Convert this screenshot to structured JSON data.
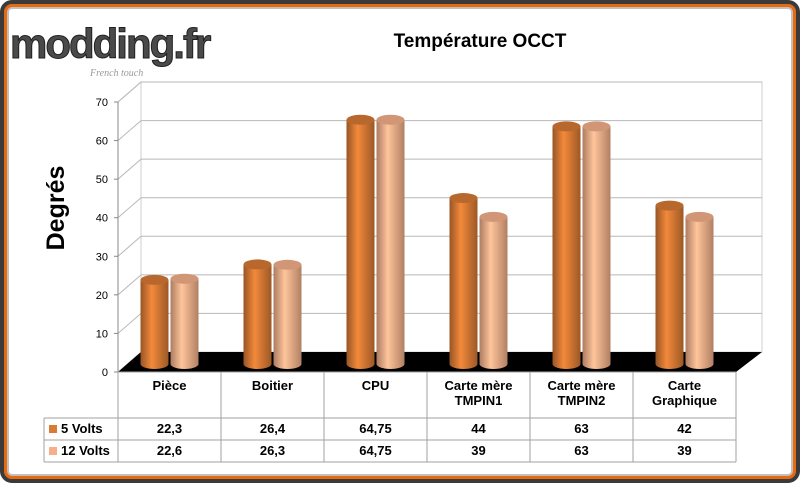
{
  "brand": {
    "logo_text": "modding.fr",
    "tagline": "French touch"
  },
  "chart_data": {
    "type": "bar",
    "title": "Température OCCT",
    "ylabel": "Degrés",
    "xlabel": "",
    "ylim": [
      0,
      70
    ],
    "yticks": [
      "0",
      "10",
      "20",
      "30",
      "40",
      "50",
      "60",
      "70"
    ],
    "categories": [
      [
        "Pièce"
      ],
      [
        "Boitier"
      ],
      [
        "CPU"
      ],
      [
        "Carte mère",
        "TMPIN1"
      ],
      [
        "Carte mère",
        "TMPIN2"
      ],
      [
        "Carte",
        "Graphique"
      ]
    ],
    "series": [
      {
        "name": "5 Volts",
        "color": "#d97a35",
        "values": [
          22.3,
          26.4,
          64.75,
          44,
          63,
          42
        ],
        "labels": [
          "22,3",
          "26,4",
          "64,75",
          "44",
          "63",
          "42"
        ]
      },
      {
        "name": "12 Volts",
        "color": "#f5b08a",
        "values": [
          22.6,
          26.3,
          64.75,
          39,
          63,
          39
        ],
        "labels": [
          "22,6",
          "26,3",
          "64,75",
          "39",
          "63",
          "39"
        ]
      }
    ],
    "legend": "table-left",
    "grid": true
  }
}
